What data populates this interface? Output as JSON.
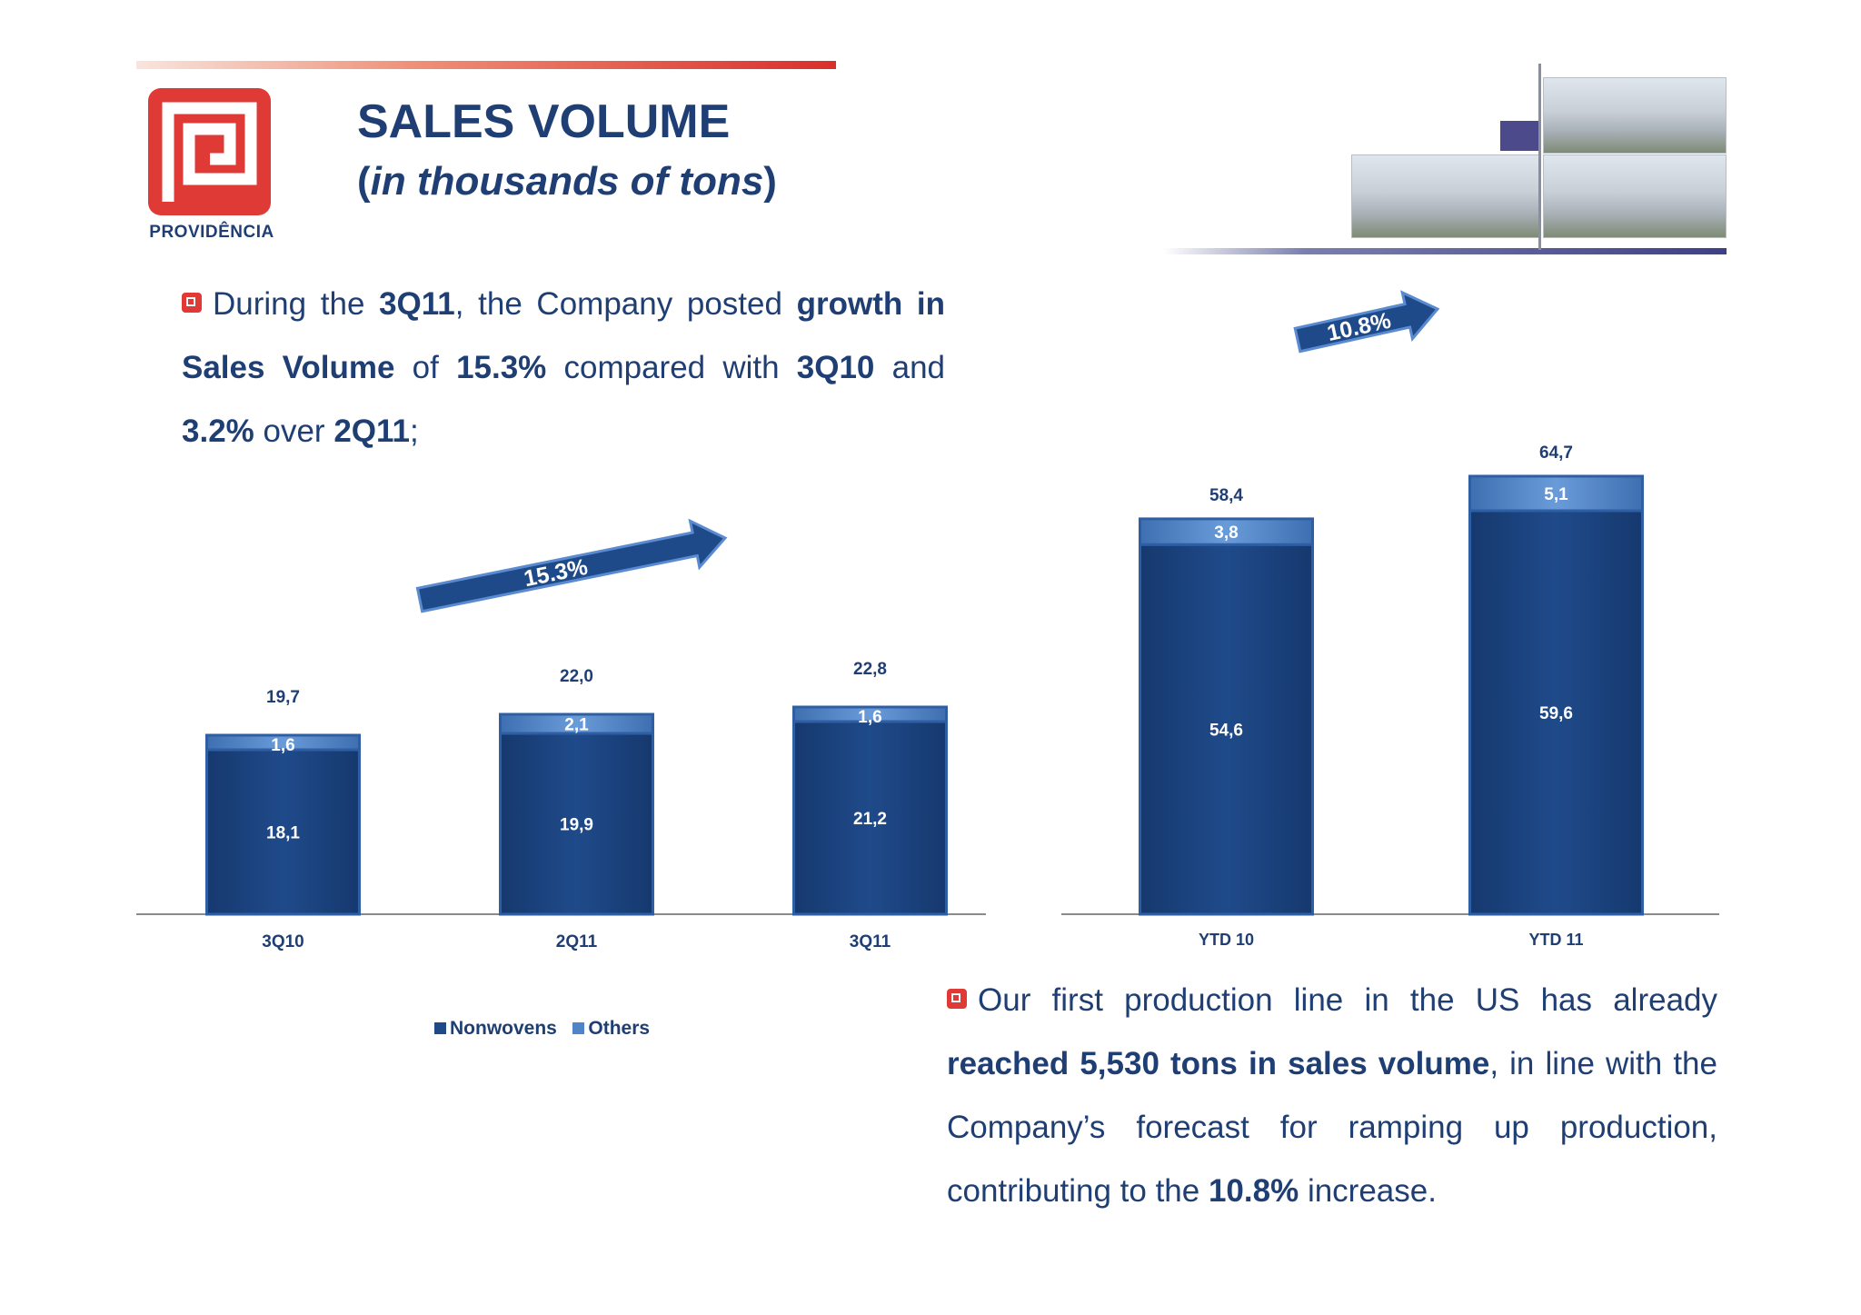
{
  "header": {
    "logo_text": "PROVIDÊNCIA",
    "title": "SALES VOLUME",
    "subtitle_open": "(",
    "subtitle_italic": "in thousands of tons",
    "subtitle_close": ")"
  },
  "paragraph1": {
    "line1": [
      "During the ",
      "3Q11",
      ", the Company posted ",
      "growth in"
    ],
    "line2": [
      "Sales Volume",
      " of ",
      "15.3%",
      " compared with ",
      "3Q10",
      " and"
    ],
    "line3": [
      "3.2%",
      " over ",
      "2Q11",
      ";"
    ]
  },
  "paragraph2": {
    "line1": "Our first production line in the US has already",
    "line2": [
      "reached 5,530 tons in sales volume",
      ", in line with the"
    ],
    "line3": "Company’s forecast for ramping up production,",
    "line4": [
      "contributing to the ",
      "10.8%",
      " increase."
    ]
  },
  "legend": {
    "nonwovens": "Nonwovens",
    "others": "Others"
  },
  "colors": {
    "nonwovens": "#1f4a8a",
    "others": "#4f84c8",
    "accent_red": "#e03a36",
    "text": "#1f3f74"
  },
  "chart_data": [
    {
      "type": "bar",
      "stacked": true,
      "categories": [
        "3Q10",
        "2Q11",
        "3Q11"
      ],
      "series": [
        {
          "name": "Nonwovens",
          "values": [
            18.1,
            19.9,
            21.2
          ],
          "labels": [
            "18,1",
            "19,9",
            "21,2"
          ]
        },
        {
          "name": "Others",
          "values": [
            1.6,
            2.1,
            1.6
          ],
          "labels": [
            "1,6",
            "2,1",
            "1,6"
          ]
        }
      ],
      "totals": [
        19.7,
        22.0,
        22.8
      ],
      "total_labels": [
        "19,7",
        "22,0",
        "22,8"
      ],
      "annotation": "15.3%",
      "legend": "bottom"
    },
    {
      "type": "bar",
      "stacked": true,
      "categories": [
        "YTD 10",
        "YTD 11"
      ],
      "series": [
        {
          "name": "Nonwovens",
          "values": [
            54.6,
            59.6
          ],
          "labels": [
            "54,6",
            "59,6"
          ]
        },
        {
          "name": "Others",
          "values": [
            3.8,
            5.1
          ],
          "labels": [
            "3,8",
            "5,1"
          ]
        }
      ],
      "totals": [
        58.4,
        64.7
      ],
      "total_labels": [
        "58,4",
        "64,7"
      ],
      "annotation": "10.8%"
    }
  ]
}
